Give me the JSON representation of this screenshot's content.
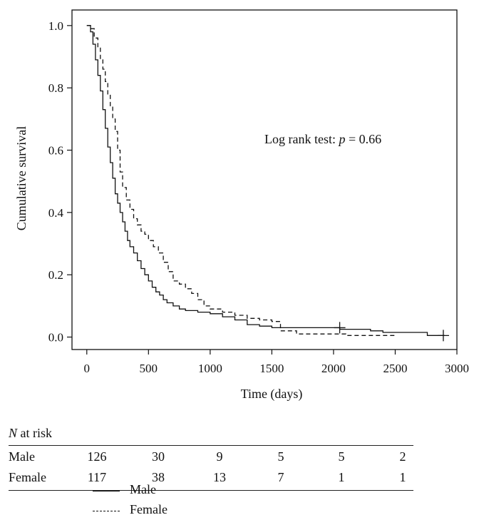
{
  "chart_data": {
    "type": "line",
    "title": "",
    "xlabel": "Time (days)",
    "ylabel": "Cumulative survival",
    "xlim": [
      -120,
      3000
    ],
    "ylim": [
      -0.04,
      1.05
    ],
    "xticks": [
      0,
      500,
      1000,
      1500,
      2000,
      2500,
      3000
    ],
    "yticks": [
      0.0,
      0.2,
      0.4,
      0.6,
      0.8,
      1.0
    ],
    "annotation": {
      "prefix": "Log rank test: ",
      "italic": "p",
      "suffix": " = 0.66"
    },
    "series": [
      {
        "name": "Male",
        "style": "solid",
        "x": [
          0,
          30,
          50,
          70,
          90,
          110,
          130,
          150,
          170,
          190,
          210,
          230,
          250,
          270,
          290,
          310,
          330,
          350,
          380,
          410,
          440,
          470,
          500,
          530,
          560,
          590,
          620,
          650,
          700,
          750,
          800,
          900,
          1000,
          1100,
          1200,
          1300,
          1400,
          1500,
          2000,
          2050,
          2300,
          2400,
          2760,
          2900
        ],
        "y": [
          1.0,
          0.98,
          0.94,
          0.89,
          0.84,
          0.79,
          0.73,
          0.67,
          0.61,
          0.56,
          0.51,
          0.46,
          0.43,
          0.4,
          0.37,
          0.34,
          0.31,
          0.29,
          0.27,
          0.245,
          0.22,
          0.2,
          0.18,
          0.16,
          0.145,
          0.135,
          0.12,
          0.11,
          0.1,
          0.09,
          0.085,
          0.08,
          0.075,
          0.065,
          0.055,
          0.04,
          0.035,
          0.03,
          0.03,
          0.025,
          0.02,
          0.015,
          0.005,
          0.005
        ],
        "censor_x": [
          2050,
          2890
        ],
        "censor_y": [
          0.03,
          0.005
        ]
      },
      {
        "name": "Female",
        "style": "dashed",
        "x": [
          0,
          30,
          60,
          90,
          110,
          130,
          150,
          170,
          190,
          210,
          230,
          250,
          270,
          290,
          320,
          350,
          380,
          410,
          440,
          470,
          500,
          540,
          580,
          620,
          660,
          700,
          750,
          800,
          850,
          900,
          950,
          1000,
          1100,
          1200,
          1300,
          1400,
          1500,
          1570,
          1600,
          1700,
          1800,
          1900,
          2000,
          2100,
          2200,
          2300,
          2400,
          2500
        ],
        "y": [
          1.0,
          0.99,
          0.96,
          0.93,
          0.89,
          0.86,
          0.82,
          0.78,
          0.74,
          0.7,
          0.66,
          0.6,
          0.53,
          0.48,
          0.44,
          0.41,
          0.38,
          0.36,
          0.34,
          0.33,
          0.31,
          0.29,
          0.27,
          0.24,
          0.21,
          0.18,
          0.17,
          0.155,
          0.14,
          0.12,
          0.1,
          0.09,
          0.08,
          0.07,
          0.06,
          0.055,
          0.05,
          0.02,
          0.02,
          0.01,
          0.01,
          0.01,
          0.01,
          0.005,
          0.005,
          0.005,
          0.005,
          0.0
        ]
      }
    ]
  },
  "risk_table": {
    "title_italic": "N",
    "title_rest": " at risk",
    "rows": [
      {
        "label": "Male",
        "values": [
          "126",
          "30",
          "9",
          "5",
          "5",
          "2"
        ]
      },
      {
        "label": "Female",
        "values": [
          "117",
          "38",
          "13",
          "7",
          "1",
          "1"
        ]
      }
    ]
  },
  "legend": [
    {
      "label": "Male",
      "style": "solid"
    },
    {
      "label": "Female",
      "style": "dashed"
    }
  ]
}
